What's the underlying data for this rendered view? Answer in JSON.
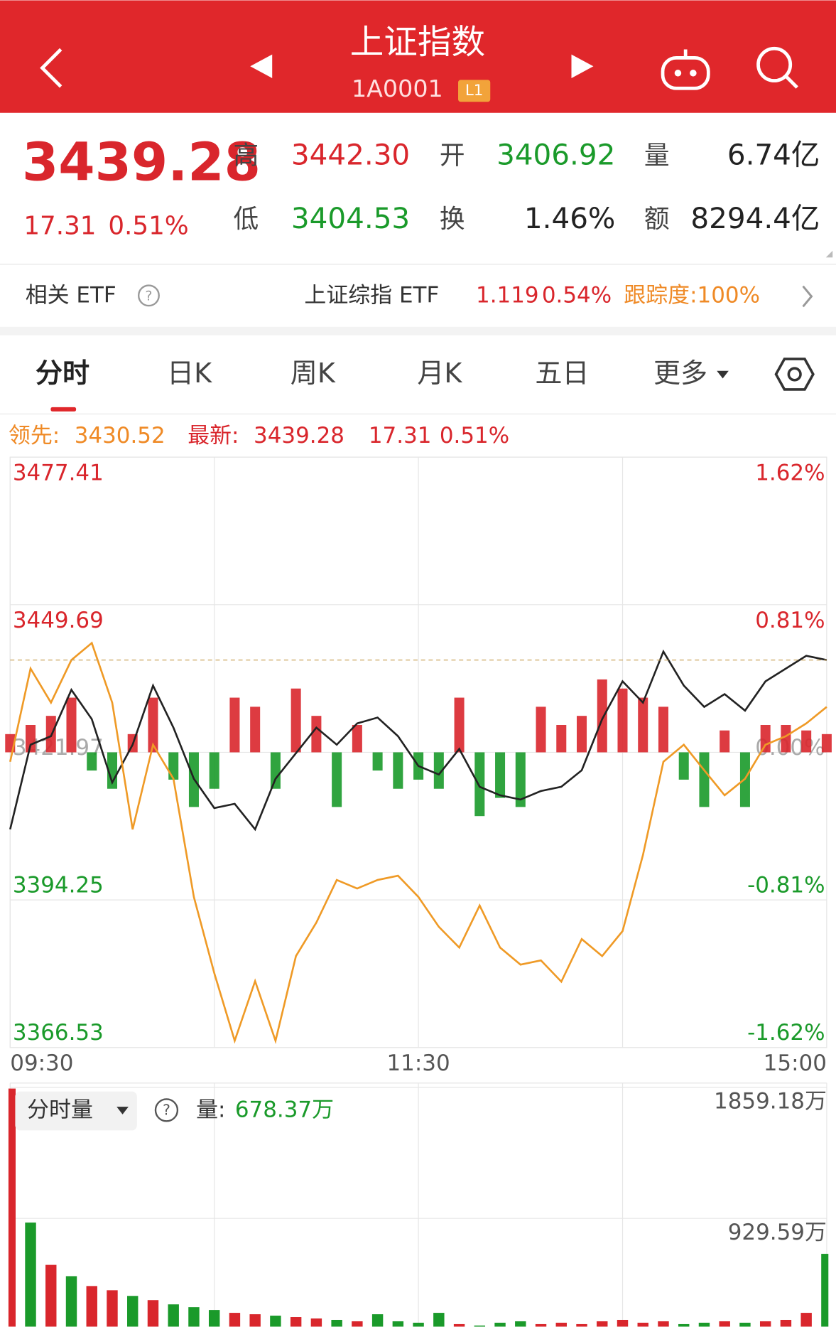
{
  "header": {
    "title": "上证指数",
    "code": "1A0001",
    "badge": "L1"
  },
  "quote": {
    "price": "3439.28",
    "change": "17.31",
    "pct": "0.51%",
    "stats": [
      {
        "label": "高",
        "value": "3442.30",
        "color": "#d9262c"
      },
      {
        "label": "开",
        "value": "3406.92",
        "color": "#1a9a2a"
      },
      {
        "label": "量",
        "value": "6.74亿",
        "color": "#222222"
      },
      {
        "label": "低",
        "value": "3404.53",
        "color": "#1a9a2a"
      },
      {
        "label": "换",
        "value": "1.46%",
        "color": "#222222"
      },
      {
        "label": "额",
        "value": "8294.4亿",
        "color": "#222222"
      }
    ]
  },
  "etf": {
    "label": "相关 ETF",
    "name": "上证综指 ETF",
    "price": "1.119",
    "pct": "0.54%",
    "tracking": "跟踪度:100%"
  },
  "tabs": [
    "分时",
    "日K",
    "周K",
    "月K",
    "五日",
    "更多"
  ],
  "info": {
    "lead_label": "领先:",
    "lead": "3430.52",
    "latest_label": "最新:",
    "latest": "3439.28",
    "change": "17.31",
    "pct": "0.51%",
    "volume_tab": "分时量",
    "volume_label": "量:",
    "volume": "678.37万"
  },
  "chart_data": [
    {
      "type": "line",
      "x": [
        0,
        6,
        12,
        18,
        24,
        30,
        36,
        42,
        48,
        54,
        60,
        66,
        72,
        78,
        84,
        90,
        96,
        102,
        108,
        114,
        120,
        126,
        132,
        138,
        144,
        150,
        156,
        162,
        168,
        174,
        180,
        186,
        192,
        198,
        204,
        210,
        216,
        222,
        228,
        234,
        240
      ],
      "xlim": [
        0,
        240
      ],
      "xticks": [
        {
          "value": 0,
          "label": "09:30"
        },
        {
          "value": 120,
          "label": "11:30"
        },
        {
          "value": 240,
          "label": "15:00"
        }
      ],
      "ylim": [
        3366.53,
        3477.41
      ],
      "yticks": [
        3477.41,
        3449.69,
        3421.97,
        3394.25,
        3366.53
      ],
      "y2lim": [
        -1.62,
        1.62
      ],
      "y2ticks": [
        {
          "value": 1.62,
          "label": "1.62%"
        },
        {
          "value": 0.81,
          "label": "0.81%"
        },
        {
          "value": 0,
          "label": "0.00%"
        },
        {
          "value": -0.81,
          "label": "-0.81%"
        },
        {
          "value": -1.62,
          "label": "-1.62%"
        }
      ],
      "grid": true,
      "series": [
        {
          "color": "#222222",
          "values": [
            3407.5,
            3423.4,
            3425.0,
            3433.7,
            3428.2,
            3416.3,
            3423.4,
            3434.5,
            3426.6,
            3417.0,
            3411.5,
            3412.3,
            3407.5,
            3417.0,
            3421.8,
            3426.6,
            3423.4,
            3427.4,
            3428.5,
            3425.0,
            3419.4,
            3417.8,
            3422.6,
            3415.5,
            3413.9,
            3413.1,
            3414.7,
            3415.5,
            3418.6,
            3428.2,
            3435.3,
            3431.3,
            3440.9,
            3434.5,
            3430.5,
            3432.9,
            3429.8,
            3435.3,
            3437.7,
            3440.1,
            3439.3
          ]
        },
        {
          "color": "#ef9a26",
          "values": [
            3420.2,
            3437.7,
            3431.3,
            3439.3,
            3442.5,
            3431.3,
            3407.5,
            3423.4,
            3417.0,
            3394.8,
            3380.5,
            3367.8,
            3379.0,
            3367.8,
            3383.7,
            3390.0,
            3398.0,
            3396.4,
            3398.0,
            3398.8,
            3394.8,
            3389.2,
            3385.3,
            3393.2,
            3385.3,
            3382.1,
            3382.9,
            3378.9,
            3386.9,
            3383.7,
            3388.4,
            3402.7,
            3420.2,
            3423.4,
            3418.6,
            3413.9,
            3417.0,
            3423.4,
            3425.0,
            3427.4,
            3430.5
          ]
        },
        {
          "type": "bar",
          "axis": "y2",
          "up_color": "#d9262c",
          "down_color": "#1a9a2a",
          "values": [
            0.1,
            0.15,
            0.2,
            0.3,
            -0.1,
            -0.2,
            0.1,
            0.3,
            -0.15,
            -0.3,
            -0.2,
            0.3,
            0.25,
            -0.2,
            0.35,
            0.2,
            -0.3,
            0.15,
            -0.1,
            -0.2,
            -0.15,
            -0.2,
            0.3,
            -0.35,
            -0.25,
            -0.3,
            0.25,
            0.15,
            0.2,
            0.4,
            0.35,
            0.3,
            0.25,
            -0.15,
            -0.3,
            0.12,
            -0.3,
            0.15,
            0.15,
            0.12,
            0.1
          ]
        }
      ]
    },
    {
      "type": "bar",
      "x": [
        0,
        6,
        12,
        18,
        24,
        30,
        36,
        42,
        48,
        54,
        60,
        66,
        72,
        78,
        84,
        90,
        96,
        102,
        108,
        114,
        120,
        126,
        132,
        138,
        144,
        150,
        156,
        162,
        168,
        174,
        180,
        186,
        192,
        198,
        204,
        210,
        216,
        222,
        228,
        234,
        240
      ],
      "xlim": [
        0,
        240
      ],
      "ylim": [
        0,
        1859.18
      ],
      "yticks": [
        {
          "value": 1859.18,
          "label": "1859.18万"
        },
        {
          "value": 929.59,
          "label": "929.59万"
        }
      ],
      "values": [
        1850,
        900,
        600,
        520,
        450,
        420,
        380,
        350,
        320,
        300,
        280,
        260,
        250,
        240,
        230,
        220,
        210,
        200,
        250,
        200,
        190,
        260,
        180,
        170,
        190,
        200,
        180,
        190,
        180,
        200,
        210,
        190,
        200,
        180,
        190,
        200,
        190,
        200,
        210,
        260,
        678.37
      ],
      "colors": [
        "#d9262c",
        "#1a9a2a",
        "#d9262c",
        "#1a9a2a",
        "#d9262c",
        "#d9262c",
        "#1a9a2a",
        "#d9262c",
        "#1a9a2a",
        "#1a9a2a",
        "#1a9a2a",
        "#d9262c",
        "#d9262c",
        "#1a9a2a",
        "#d9262c",
        "#d9262c",
        "#1a9a2a",
        "#d9262c",
        "#1a9a2a",
        "#1a9a2a",
        "#1a9a2a",
        "#1a9a2a",
        "#d9262c",
        "#1a9a2a",
        "#1a9a2a",
        "#1a9a2a",
        "#d9262c",
        "#d9262c",
        "#d9262c",
        "#d9262c",
        "#d9262c",
        "#d9262c",
        "#d9262c",
        "#1a9a2a",
        "#1a9a2a",
        "#d9262c",
        "#1a9a2a",
        "#d9262c",
        "#d9262c",
        "#d9262c",
        "#1a9a2a"
      ]
    }
  ]
}
